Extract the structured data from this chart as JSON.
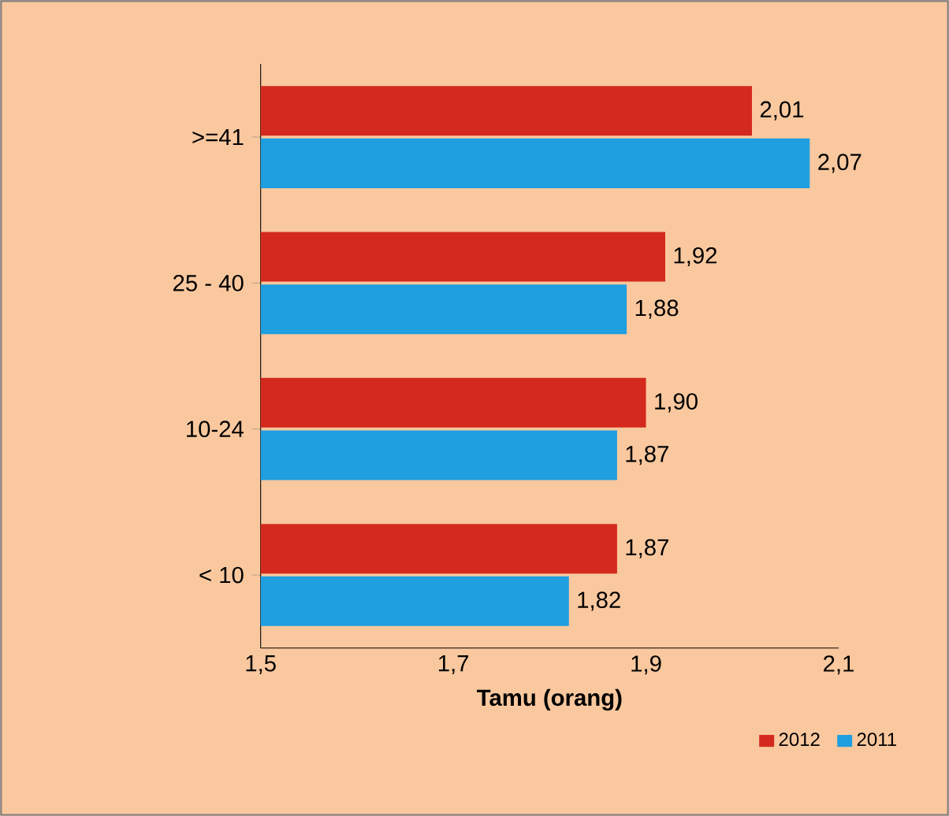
{
  "chart_data": {
    "type": "bar",
    "orientation": "horizontal",
    "xlabel": "Tamu (orang)",
    "categories": [
      ">=41",
      "25 - 40",
      "10-24",
      "< 10"
    ],
    "series": [
      {
        "name": "2012",
        "color": "#d42a1e",
        "values": [
          2.01,
          1.92,
          1.9,
          1.87
        ],
        "value_labels": [
          "2,01",
          "1,92",
          "1,90",
          "1,87"
        ]
      },
      {
        "name": "2011",
        "color": "#1f9ee0",
        "values": [
          2.07,
          1.88,
          1.87,
          1.82
        ],
        "value_labels": [
          "2,07",
          "1,88",
          "1,87",
          "1,82"
        ]
      }
    ],
    "xlim": [
      1.5,
      2.1
    ],
    "xticks": [
      {
        "value": 1.5,
        "label": "1,5"
      },
      {
        "value": 1.7,
        "label": "1,7"
      },
      {
        "value": 1.9,
        "label": "1,9"
      },
      {
        "value": 2.1,
        "label": "2,1"
      }
    ],
    "legend": "bottom right"
  }
}
